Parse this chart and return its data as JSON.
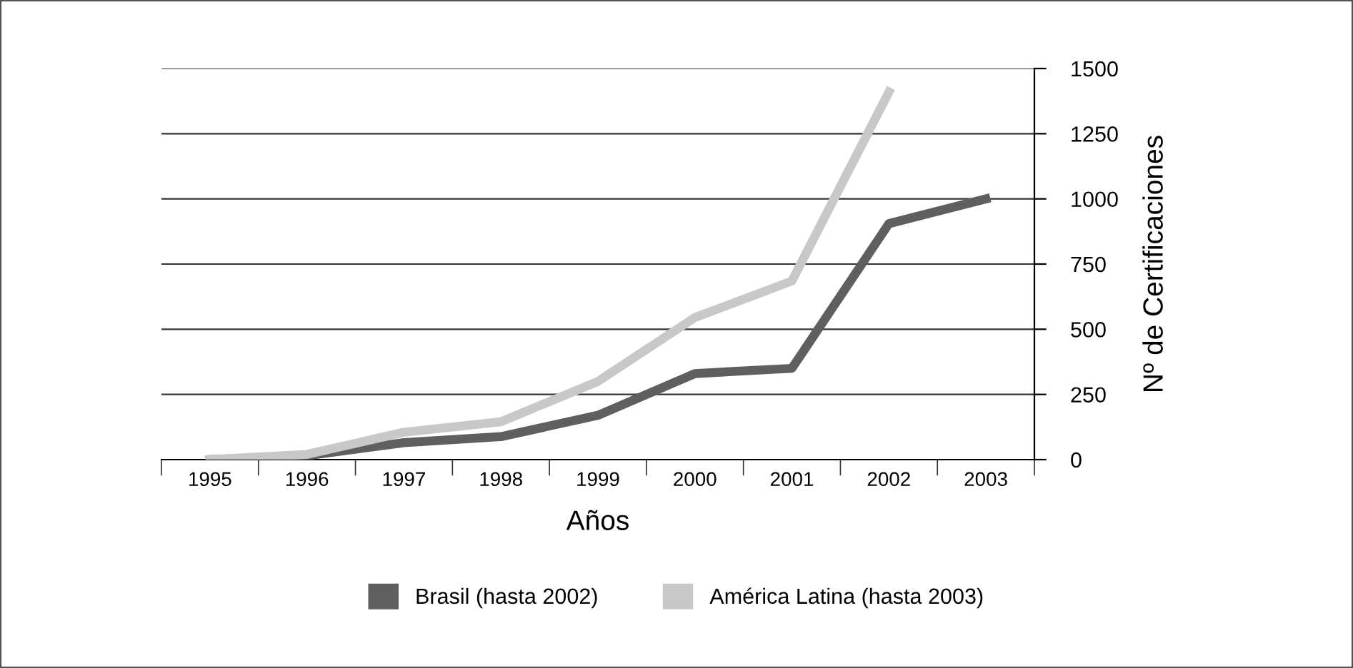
{
  "chart_data": {
    "type": "line",
    "xlabel": "Años",
    "ylabel": "Nº de Certificaciones",
    "categories": [
      "1995",
      "1996",
      "1997",
      "1998",
      "1999",
      "2000",
      "2001",
      "2002",
      "2003"
    ],
    "series": [
      {
        "name": "Brasil (hasta 2002)",
        "color": "#5f5f5f",
        "values": [
          0,
          15,
          65,
          88,
          170,
          330,
          350,
          905,
          1000
        ]
      },
      {
        "name": "América Latina (hasta 2003)",
        "color": "#c8c8c8",
        "values": [
          0,
          20,
          105,
          145,
          300,
          545,
          685,
          1410,
          null
        ]
      }
    ],
    "ylim": [
      0,
      1500
    ],
    "yticks": [
      0,
      250,
      500,
      750,
      1000,
      1250,
      1500
    ],
    "grid": "y",
    "legend": "bottom",
    "marker": "none",
    "line_style": "solid"
  }
}
